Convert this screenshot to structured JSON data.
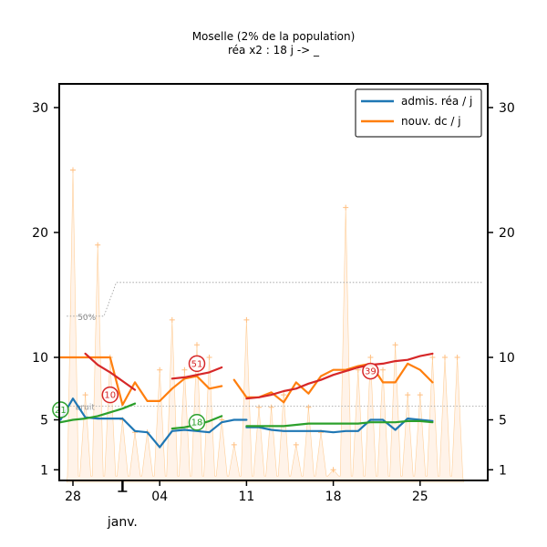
{
  "chart_data": {
    "type": "line",
    "title": "Moselle (2% de la population)",
    "subtitle": "réa x2 : 18 j -> _",
    "ylim": [
      0,
      32
    ],
    "yticks": [
      1,
      5,
      10,
      20,
      30
    ],
    "xlim": [
      -1.5,
      32.5
    ],
    "xticks": [
      {
        "x": 0,
        "label": "28"
      },
      {
        "x": 7,
        "label": "04"
      },
      {
        "x": 14,
        "label": "11"
      },
      {
        "x": 21,
        "label": "18"
      },
      {
        "x": 28,
        "label": "25"
      }
    ],
    "month_label": {
      "x": 4,
      "label": "janv."
    },
    "legend": [
      {
        "name": "admis. réa / j",
        "color": "#1f77b4"
      },
      {
        "name": "nouv. dc / j",
        "color": "#ff7f0e"
      }
    ],
    "series": [
      {
        "name": "admis. réa / j",
        "color": "#1f77b4",
        "segments": [
          [
            [
              -1,
              5
            ],
            [
              0,
              6.7
            ],
            [
              1,
              5.2
            ],
            [
              2,
              5.1
            ],
            [
              3,
              5.1
            ],
            [
              4,
              5.1
            ],
            [
              5,
              4.1
            ],
            [
              6,
              4.0
            ],
            [
              7,
              2.8
            ],
            [
              8,
              4.1
            ],
            [
              9,
              4.2
            ],
            [
              10,
              4.1
            ],
            [
              11,
              4.0
            ],
            [
              12,
              4.8
            ],
            [
              13,
              5.0
            ],
            [
              14,
              5.0
            ]
          ],
          [
            [
              14,
              4.4
            ],
            [
              15,
              4.4
            ],
            [
              16,
              4.2
            ],
            [
              17,
              4.1
            ],
            [
              18,
              4.1
            ],
            [
              19,
              4.1
            ],
            [
              20,
              4.1
            ],
            [
              21,
              4.0
            ],
            [
              22,
              4.1
            ],
            [
              23,
              4.1
            ],
            [
              24,
              5.0
            ],
            [
              25,
              5.0
            ],
            [
              26,
              4.2
            ],
            [
              27,
              5.1
            ],
            [
              28,
              5.0
            ],
            [
              29,
              4.9
            ]
          ]
        ]
      },
      {
        "name": "nouv. dc / j",
        "color": "#ff7f0e",
        "segments": [
          [
            [
              -1,
              10
            ],
            [
              0,
              10
            ],
            [
              1,
              10
            ],
            [
              2,
              10
            ],
            [
              3,
              10
            ],
            [
              4,
              6.2
            ],
            [
              5,
              8
            ],
            [
              6,
              6.5
            ],
            [
              7,
              6.5
            ],
            [
              8,
              7.5
            ],
            [
              9,
              8.3
            ],
            [
              10,
              8.5
            ],
            [
              11,
              7.5
            ],
            [
              12,
              7.7
            ]
          ],
          [
            [
              13,
              8.2
            ],
            [
              14,
              6.8
            ],
            [
              15,
              6.8
            ],
            [
              16,
              7.2
            ],
            [
              17,
              6.4
            ],
            [
              18,
              8
            ],
            [
              19,
              7.1
            ],
            [
              20,
              8.5
            ],
            [
              21,
              9
            ],
            [
              22,
              9
            ],
            [
              23,
              9.3
            ],
            [
              24,
              9.5
            ],
            [
              25,
              8
            ],
            [
              26,
              8
            ],
            [
              27,
              9.5
            ],
            [
              28,
              9
            ],
            [
              29,
              8
            ]
          ]
        ]
      },
      {
        "name": "tendance dc",
        "color": "#d62728",
        "segments": [
          [
            [
              1,
              10.3
            ],
            [
              2,
              9.4
            ],
            [
              3,
              8.8
            ],
            [
              4,
              8.1
            ],
            [
              5,
              7.4
            ]
          ],
          [
            [
              8,
              8.3
            ],
            [
              9,
              8.4
            ],
            [
              10,
              8.6
            ],
            [
              11,
              8.8
            ],
            [
              12,
              9.2
            ]
          ],
          [
            [
              14,
              6.7
            ],
            [
              15,
              6.8
            ],
            [
              16,
              7.0
            ],
            [
              17,
              7.3
            ],
            [
              18,
              7.5
            ],
            [
              19,
              7.9
            ],
            [
              20,
              8.2
            ],
            [
              21,
              8.6
            ],
            [
              22,
              8.9
            ],
            [
              23,
              9.2
            ],
            [
              24,
              9.4
            ],
            [
              25,
              9.5
            ],
            [
              26,
              9.7
            ],
            [
              27,
              9.8
            ],
            [
              28,
              10.1
            ],
            [
              29,
              10.3
            ]
          ]
        ]
      },
      {
        "name": "tendance réa",
        "color": "#2ca02c",
        "segments": [
          [
            [
              -1,
              4.8
            ],
            [
              0,
              5.0
            ],
            [
              1,
              5.1
            ],
            [
              2,
              5.3
            ],
            [
              3,
              5.6
            ],
            [
              4,
              5.9
            ],
            [
              5,
              6.3
            ]
          ],
          [
            [
              8,
              4.3
            ],
            [
              9,
              4.4
            ],
            [
              10,
              4.6
            ],
            [
              11,
              4.9
            ],
            [
              12,
              5.3
            ]
          ],
          [
            [
              14,
              4.5
            ],
            [
              15,
              4.5
            ],
            [
              16,
              4.5
            ],
            [
              17,
              4.5
            ],
            [
              18,
              4.6
            ],
            [
              19,
              4.7
            ],
            [
              20,
              4.7
            ],
            [
              21,
              4.7
            ],
            [
              22,
              4.7
            ],
            [
              23,
              4.7
            ],
            [
              24,
              4.8
            ],
            [
              25,
              4.8
            ],
            [
              26,
              4.8
            ],
            [
              27,
              4.9
            ],
            [
              28,
              4.9
            ],
            [
              29,
              4.8
            ]
          ]
        ]
      }
    ],
    "spikes": [
      [
        0,
        25
      ],
      [
        1,
        7
      ],
      [
        2,
        19
      ],
      [
        3,
        10
      ],
      [
        4,
        5
      ],
      [
        5,
        4
      ],
      [
        6,
        4
      ],
      [
        7,
        9
      ],
      [
        8,
        13
      ],
      [
        9,
        9
      ],
      [
        10,
        11
      ],
      [
        11,
        10
      ],
      [
        12,
        5
      ],
      [
        13,
        3
      ],
      [
        14,
        13
      ],
      [
        15,
        6
      ],
      [
        16,
        6
      ],
      [
        17,
        7
      ],
      [
        18,
        3
      ],
      [
        19,
        6
      ],
      [
        20,
        4
      ],
      [
        21,
        1
      ],
      [
        22,
        22
      ],
      [
        23,
        9
      ],
      [
        24,
        10
      ],
      [
        25,
        9
      ],
      [
        26,
        11
      ],
      [
        27,
        7
      ],
      [
        28,
        7
      ],
      [
        29,
        10
      ],
      [
        30,
        10
      ],
      [
        31,
        10
      ]
    ],
    "threshold_line": {
      "points": [
        [
          -0.5,
          13.3
        ],
        [
          2.5,
          13.3
        ],
        [
          3.5,
          16
        ],
        [
          33,
          16
        ]
      ],
      "label": "50%"
    },
    "noise_line": {
      "y": 6.1,
      "label": "bruit"
    },
    "annotations": [
      {
        "x": 3,
        "y": 7,
        "label": "10",
        "color": "#d62728"
      },
      {
        "x": 10,
        "y": 9.5,
        "label": "51",
        "color": "#d62728"
      },
      {
        "x": 24,
        "y": 8.9,
        "label": "39",
        "color": "#d62728"
      },
      {
        "x": -1,
        "y": 5.8,
        "label": "21",
        "color": "#2ca02c"
      },
      {
        "x": 10,
        "y": 4.8,
        "label": "18",
        "color": "#2ca02c"
      }
    ]
  }
}
